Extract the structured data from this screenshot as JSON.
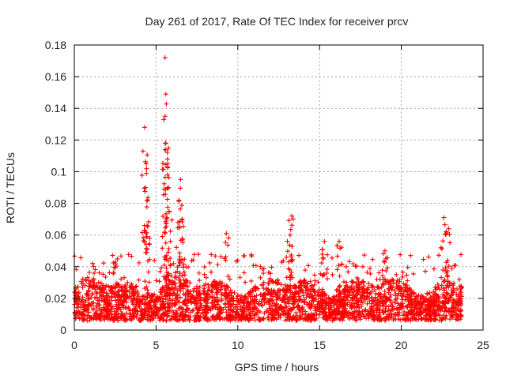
{
  "chart_data": {
    "type": "scatter",
    "title": "Day 261 of 2017, Rate Of TEC Index for receiver prcv",
    "xlabel": "GPS time / hours",
    "ylabel": "ROTI / TECUs",
    "xlim": [
      0,
      25
    ],
    "ylim": [
      0,
      0.18
    ],
    "xticks": [
      0,
      5,
      10,
      15,
      20,
      25
    ],
    "yticks": [
      0,
      0.02,
      0.04,
      0.06,
      0.08,
      0.1,
      0.12,
      0.14,
      0.16,
      0.18
    ],
    "xtick_labels": [
      "0",
      "5",
      "10",
      "15",
      "20",
      "25"
    ],
    "ytick_labels": [
      "0",
      "0.02",
      "0.04",
      "0.06",
      "0.08",
      "0.1",
      "0.12",
      "0.14",
      "0.16",
      "0.18"
    ],
    "grid": true,
    "marker": "+",
    "series": [
      {
        "name": "ROTI",
        "color": "#ff0000",
        "x_range": [
          0,
          23.7
        ],
        "baseline_min": 0.006,
        "baseline_max": 0.035,
        "peaks": [
          {
            "x": 4.3,
            "y": 0.128
          },
          {
            "x": 4.4,
            "y": 0.105
          },
          {
            "x": 4.35,
            "y": 0.09
          },
          {
            "x": 4.45,
            "y": 0.066
          },
          {
            "x": 5.55,
            "y": 0.172
          },
          {
            "x": 5.6,
            "y": 0.149
          },
          {
            "x": 5.55,
            "y": 0.135
          },
          {
            "x": 5.6,
            "y": 0.118
          },
          {
            "x": 5.7,
            "y": 0.108
          },
          {
            "x": 5.75,
            "y": 0.09
          },
          {
            "x": 5.8,
            "y": 0.075
          },
          {
            "x": 6.5,
            "y": 0.095
          },
          {
            "x": 6.4,
            "y": 0.082
          },
          {
            "x": 6.6,
            "y": 0.07
          },
          {
            "x": 9.3,
            "y": 0.061
          },
          {
            "x": 13.3,
            "y": 0.072
          },
          {
            "x": 13.2,
            "y": 0.06
          },
          {
            "x": 16.2,
            "y": 0.056
          },
          {
            "x": 19.0,
            "y": 0.05
          },
          {
            "x": 22.6,
            "y": 0.071
          },
          {
            "x": 22.9,
            "y": 0.064
          },
          {
            "x": 2.5,
            "y": 0.043
          },
          {
            "x": 15.3,
            "y": 0.056
          }
        ]
      }
    ]
  }
}
